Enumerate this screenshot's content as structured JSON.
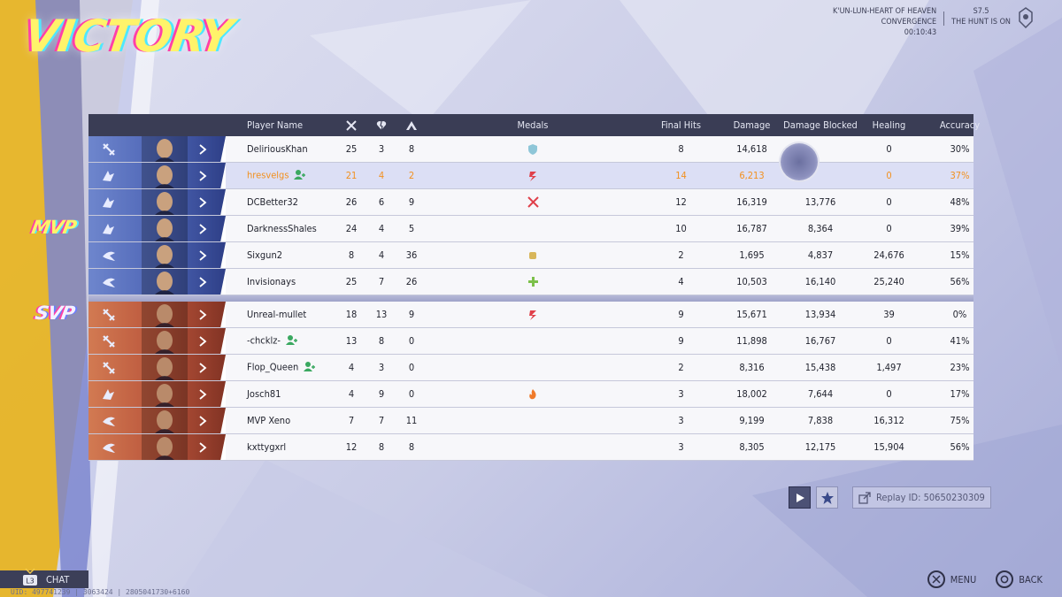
{
  "title": "VICTORY",
  "match": {
    "map_line1": "K'UN-LUN-HEART OF HEAVEN",
    "map_line2": "CONVERGENCE",
    "duration": "00:10:43",
    "season": "S7.5",
    "season_name": "THE HUNT IS ON"
  },
  "headers": {
    "player_name": "Player Name",
    "medals": "Medals",
    "final_hits": "Final Hits",
    "damage": "Damage",
    "damage_blocked": "Damage Blocked",
    "healing": "Healing",
    "accuracy": "Accuracy",
    "kills_icon": "crossed-swords-icon",
    "deaths_icon": "broken-heart-icon",
    "assists_icon": "assist-icon"
  },
  "awards": {
    "mvp": "MVP",
    "svp": "SVP"
  },
  "team_a": [
    {
      "name": "DeliriousKhan",
      "k": "25",
      "d": "3",
      "a": "8",
      "medal": "shield-medal-icon",
      "fh": "8",
      "dmg": "14,618",
      "blk": "",
      "heal": "0",
      "acc": "30%",
      "role": "vanguard"
    },
    {
      "name": "hresvelgs",
      "k": "21",
      "d": "4",
      "a": "2",
      "medal": "streak-medal-icon",
      "fh": "14",
      "dmg": "6,213",
      "blk": "",
      "heal": "0",
      "acc": "37%",
      "role": "duelist",
      "friend": true,
      "self": true
    },
    {
      "name": "DCBetter32",
      "k": "26",
      "d": "6",
      "a": "9",
      "medal": "crossed-blades-medal-icon",
      "fh": "12",
      "dmg": "16,319",
      "blk": "13,776",
      "heal": "0",
      "acc": "48%",
      "role": "duelist"
    },
    {
      "name": "DarknessShales",
      "k": "24",
      "d": "4",
      "a": "5",
      "medal": "",
      "fh": "10",
      "dmg": "16,787",
      "blk": "8,364",
      "heal": "0",
      "acc": "39%",
      "role": "duelist"
    },
    {
      "name": "Sixgun2",
      "k": "8",
      "d": "4",
      "a": "36",
      "medal": "fist-medal-icon",
      "fh": "2",
      "dmg": "1,695",
      "blk": "4,837",
      "heal": "24,676",
      "acc": "15%",
      "role": "strategist"
    },
    {
      "name": "Invisionays",
      "k": "25",
      "d": "7",
      "a": "26",
      "medal": "cross-medal-icon",
      "fh": "4",
      "dmg": "10,503",
      "blk": "16,140",
      "heal": "25,240",
      "acc": "56%",
      "role": "strategist"
    }
  ],
  "team_b": [
    {
      "name": "Unreal-mullet",
      "k": "18",
      "d": "13",
      "a": "9",
      "medal": "streak-medal-icon",
      "fh": "9",
      "dmg": "15,671",
      "blk": "13,934",
      "heal": "39",
      "acc": "0%",
      "role": "vanguard"
    },
    {
      "name": "-chcklz-",
      "k": "13",
      "d": "8",
      "a": "0",
      "medal": "",
      "fh": "9",
      "dmg": "11,898",
      "blk": "16,767",
      "heal": "0",
      "acc": "41%",
      "role": "vanguard",
      "friend": true
    },
    {
      "name": "Flop_Queen",
      "k": "4",
      "d": "3",
      "a": "0",
      "medal": "",
      "fh": "2",
      "dmg": "8,316",
      "blk": "15,438",
      "heal": "1,497",
      "acc": "23%",
      "role": "vanguard",
      "friend": true
    },
    {
      "name": "Josch81",
      "k": "4",
      "d": "9",
      "a": "0",
      "medal": "flame-medal-icon",
      "fh": "3",
      "dmg": "18,002",
      "blk": "7,644",
      "heal": "0",
      "acc": "17%",
      "role": "duelist"
    },
    {
      "name": "MVP Xeno",
      "k": "7",
      "d": "7",
      "a": "11",
      "medal": "",
      "fh": "3",
      "dmg": "9,199",
      "blk": "7,838",
      "heal": "16,312",
      "acc": "75%",
      "role": "strategist"
    },
    {
      "name": "kxttygxrl",
      "k": "12",
      "d": "8",
      "a": "8",
      "medal": "",
      "fh": "3",
      "dmg": "8,305",
      "blk": "12,175",
      "heal": "15,904",
      "acc": "56%",
      "role": "strategist"
    }
  ],
  "replay": {
    "label": "Replay ID: 50650230309"
  },
  "chat": {
    "label": "CHAT",
    "badge": "L3"
  },
  "uid_line": "UID: 497741239 | 3063424 | 2805041730+6160",
  "footer": {
    "menu": "MENU",
    "back": "BACK"
  },
  "colors": {
    "team_a": "#4c63b4",
    "team_b": "#b8533a",
    "self_highlight": "#f2901e",
    "header_bg": "#3a3d55"
  }
}
